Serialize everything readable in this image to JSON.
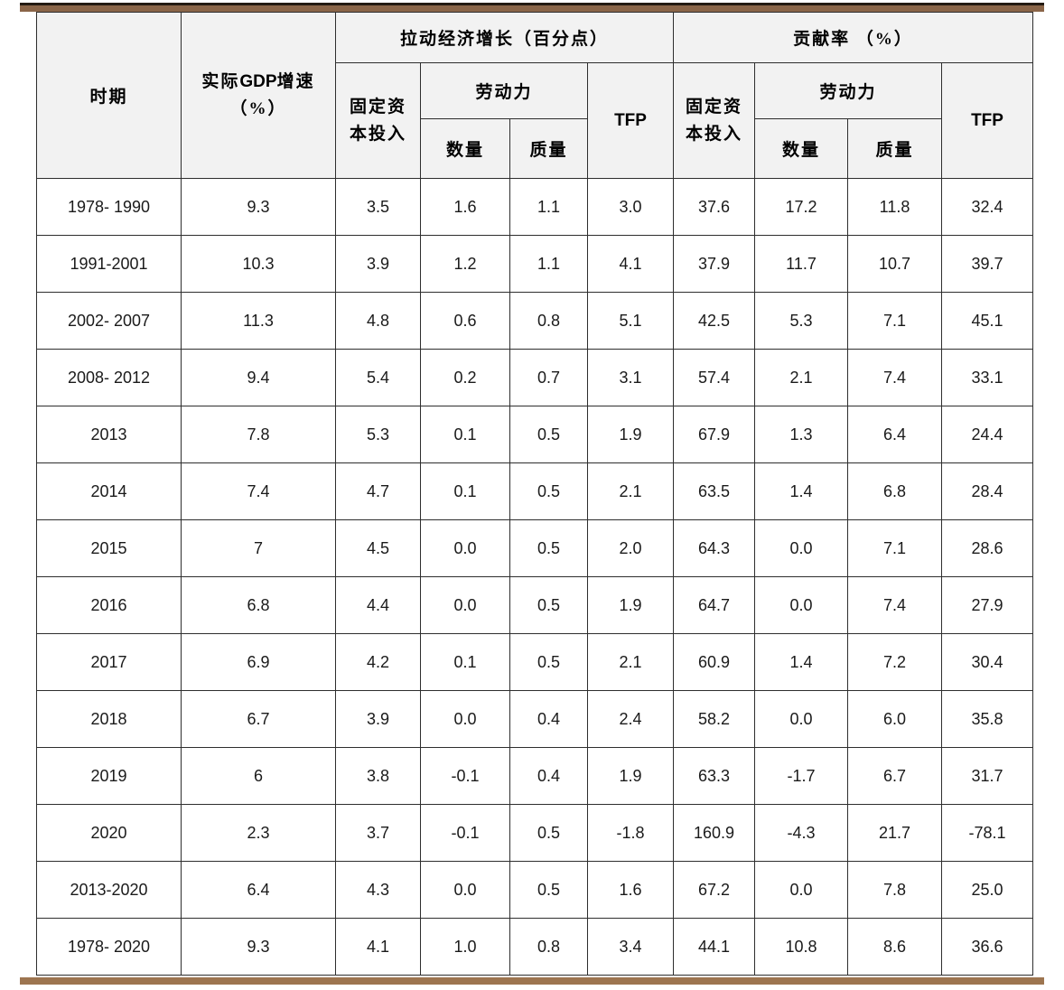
{
  "colors": {
    "top_bar": "#8a6548",
    "top_bar_edge": "#241a12",
    "bottom_bar": "#9d7550",
    "header_background": "#f2f2f2",
    "cell_border": "#2e2e2e"
  },
  "table": {
    "header": {
      "period": "时期",
      "gdp_line1_pre": "实际",
      "gdp_acronym": "GDP",
      "gdp_line1_post": "增速",
      "gdp_line2": "（%）",
      "group_pull": "拉动经济增长（百分点）",
      "group_contribution": "贡献率 （%）",
      "fixed_capital_line1": "固定资",
      "fixed_capital_line2": "本投入",
      "labor": "劳动力",
      "quantity": "数量",
      "quality": "质量",
      "tfp": "TFP"
    },
    "rows": [
      {
        "period": "1978- 1990",
        "values": [
          "9.3",
          "3.5",
          "1.6",
          "1.1",
          "3.0",
          "37.6",
          "17.2",
          "11.8",
          "32.4"
        ]
      },
      {
        "period": "1991-2001",
        "values": [
          "10.3",
          "3.9",
          "1.2",
          "1.1",
          "4.1",
          "37.9",
          "11.7",
          "10.7",
          "39.7"
        ]
      },
      {
        "period": "2002- 2007",
        "values": [
          "11.3",
          "4.8",
          "0.6",
          "0.8",
          "5.1",
          "42.5",
          "5.3",
          "7.1",
          "45.1"
        ]
      },
      {
        "period": "2008- 2012",
        "values": [
          "9.4",
          "5.4",
          "0.2",
          "0.7",
          "3.1",
          "57.4",
          "2.1",
          "7.4",
          "33.1"
        ]
      },
      {
        "period": "2013",
        "values": [
          "7.8",
          "5.3",
          "0.1",
          "0.5",
          "1.9",
          "67.9",
          "1.3",
          "6.4",
          "24.4"
        ]
      },
      {
        "period": "2014",
        "values": [
          "7.4",
          "4.7",
          "0.1",
          "0.5",
          "2.1",
          "63.5",
          "1.4",
          "6.8",
          "28.4"
        ]
      },
      {
        "period": "2015",
        "values": [
          "7",
          "4.5",
          "0.0",
          "0.5",
          "2.0",
          "64.3",
          "0.0",
          "7.1",
          "28.6"
        ]
      },
      {
        "period": "2016",
        "values": [
          "6.8",
          "4.4",
          "0.0",
          "0.5",
          "1.9",
          "64.7",
          "0.0",
          "7.4",
          "27.9"
        ]
      },
      {
        "period": "2017",
        "values": [
          "6.9",
          "4.2",
          "0.1",
          "0.5",
          "2.1",
          "60.9",
          "1.4",
          "7.2",
          "30.4"
        ]
      },
      {
        "period": "2018",
        "values": [
          "6.7",
          "3.9",
          "0.0",
          "0.4",
          "2.4",
          "58.2",
          "0.0",
          "6.0",
          "35.8"
        ]
      },
      {
        "period": "2019",
        "values": [
          "6",
          "3.8",
          "-0.1",
          "0.4",
          "1.9",
          "63.3",
          "-1.7",
          "6.7",
          "31.7"
        ]
      },
      {
        "period": "2020",
        "values": [
          "2.3",
          "3.7",
          "-0.1",
          "0.5",
          "-1.8",
          "160.9",
          "-4.3",
          "21.7",
          "-78.1"
        ]
      },
      {
        "period": "2013-2020",
        "values": [
          "6.4",
          "4.3",
          "0.0",
          "0.5",
          "1.6",
          "67.2",
          "0.0",
          "7.8",
          "25.0"
        ]
      },
      {
        "period": "1978- 2020",
        "values": [
          "9.3",
          "4.1",
          "1.0",
          "0.8",
          "3.4",
          "44.1",
          "10.8",
          "8.6",
          "36.6"
        ]
      }
    ]
  }
}
